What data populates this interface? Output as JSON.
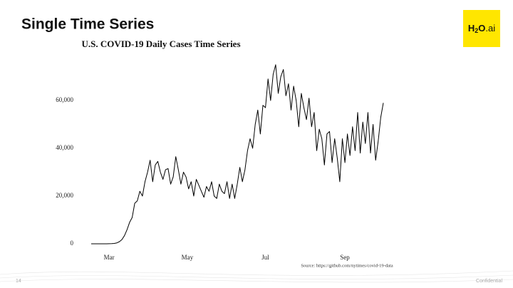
{
  "slide": {
    "title": "Single Time Series",
    "logo": [
      "H",
      "2",
      "O",
      ".ai"
    ],
    "page_number": "14",
    "footer": "Confidential"
  },
  "chart_data": {
    "type": "line",
    "title": "U.S. COVID-19 Daily Cases Time Series",
    "source": "Source: https://github.com/nytimes/covid-19-data",
    "color": "#000000",
    "values": [
      0,
      0,
      0,
      0,
      0,
      0,
      0,
      20,
      60,
      150,
      400,
      900,
      1800,
      3500,
      6000,
      9000,
      11000,
      17000,
      18000,
      22000,
      20000,
      26000,
      30000,
      35000,
      26000,
      33000,
      34500,
      30000,
      27000,
      31000,
      31500,
      25000,
      28000,
      36500,
      31000,
      25000,
      30000,
      28000,
      23000,
      26000,
      20000,
      27000,
      24500,
      22000,
      19500,
      24000,
      22000,
      26000,
      20000,
      19000,
      25000,
      22000,
      21000,
      26000,
      19000,
      25000,
      19000,
      25000,
      32000,
      26000,
      31000,
      39000,
      44000,
      40000,
      50000,
      56000,
      46000,
      58000,
      57000,
      69000,
      60000,
      71000,
      75000,
      63000,
      70000,
      73000,
      62000,
      67000,
      56000,
      66000,
      60000,
      49000,
      63000,
      57000,
      52000,
      61000,
      49000,
      55000,
      39000,
      48000,
      44000,
      33000,
      46000,
      47000,
      34000,
      44000,
      36000,
      26000,
      44000,
      34000,
      46000,
      37000,
      49000,
      39000,
      55000,
      38000,
      51000,
      42000,
      55000,
      38000,
      50000,
      35000,
      43000,
      53000,
      59000
    ],
    "xlim": [
      0,
      114
    ],
    "xticks": [
      {
        "value": 7,
        "label": "Mar"
      },
      {
        "value": 37.5,
        "label": "May"
      },
      {
        "value": 68,
        "label": "Jul"
      },
      {
        "value": 99,
        "label": "Sep"
      }
    ],
    "ylim": [
      0,
      80000
    ],
    "yticks": [
      0,
      {
        "value": 20000,
        "label": "20,000"
      },
      {
        "value": 40000,
        "label": "40,000"
      },
      {
        "value": 60000,
        "label": "60,000"
      }
    ],
    "grid": false
  }
}
